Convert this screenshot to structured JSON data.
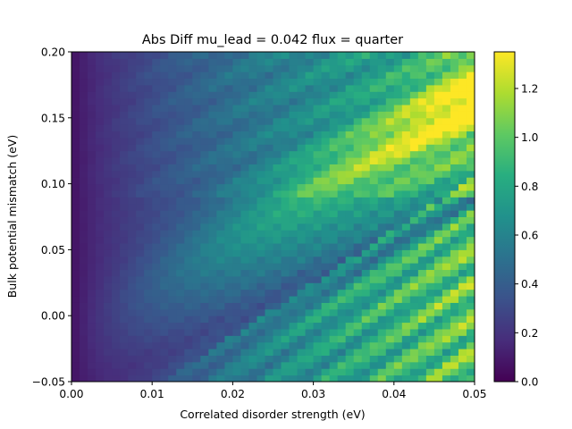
{
  "chart_data": {
    "type": "heatmap",
    "title": "Abs Diff mu_lead = 0.042 flux = quarter",
    "xlabel": "Correlated disorder strength (eV)",
    "ylabel": "Bulk potential mismatch (eV)",
    "xlim": [
      0.0,
      0.05
    ],
    "ylim": [
      -0.05,
      0.2
    ],
    "xticks": [
      "0.00",
      "0.01",
      "0.02",
      "0.03",
      "0.04",
      "0.05"
    ],
    "yticks": [
      "−0.05",
      "0.00",
      "0.05",
      "0.10",
      "0.15",
      "0.20"
    ],
    "colormap": "viridis",
    "colorbar": {
      "range": [
        0.0,
        1.35
      ],
      "ticks": [
        "0.0",
        "0.2",
        "0.4",
        "0.6",
        "0.8",
        "1.0",
        "1.2"
      ]
    },
    "grid": false
  }
}
